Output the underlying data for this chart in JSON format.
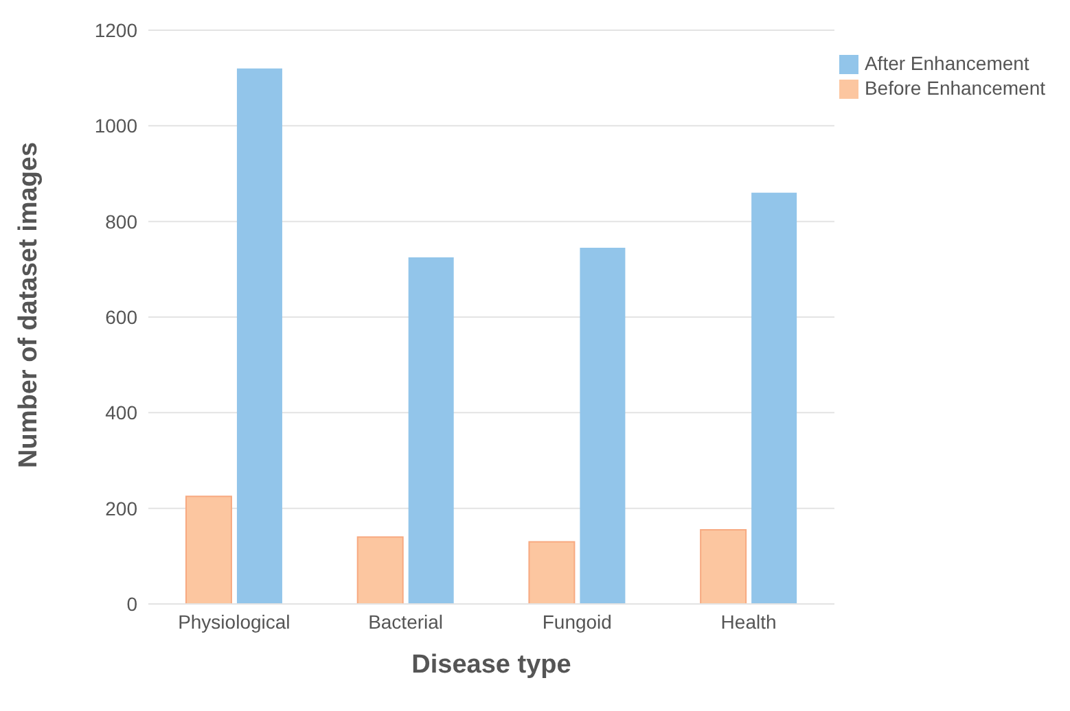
{
  "chart_data": {
    "type": "bar",
    "xlabel": "Disease type",
    "ylabel": "Number of dataset images",
    "categories": [
      "Physiological",
      "Bacterial",
      "Fungoid",
      "Health"
    ],
    "series": [
      {
        "name": "Before Enhancement",
        "color": "#fcc6a0",
        "values": [
          225,
          140,
          130,
          155
        ]
      },
      {
        "name": "After Enhancement",
        "color": "#92c5ea",
        "values": [
          1120,
          725,
          745,
          860
        ]
      }
    ],
    "ylim": [
      0,
      1200
    ],
    "yticks": [
      0,
      200,
      400,
      600,
      800,
      1000,
      1200
    ],
    "grid": "y",
    "legend": "top right"
  }
}
